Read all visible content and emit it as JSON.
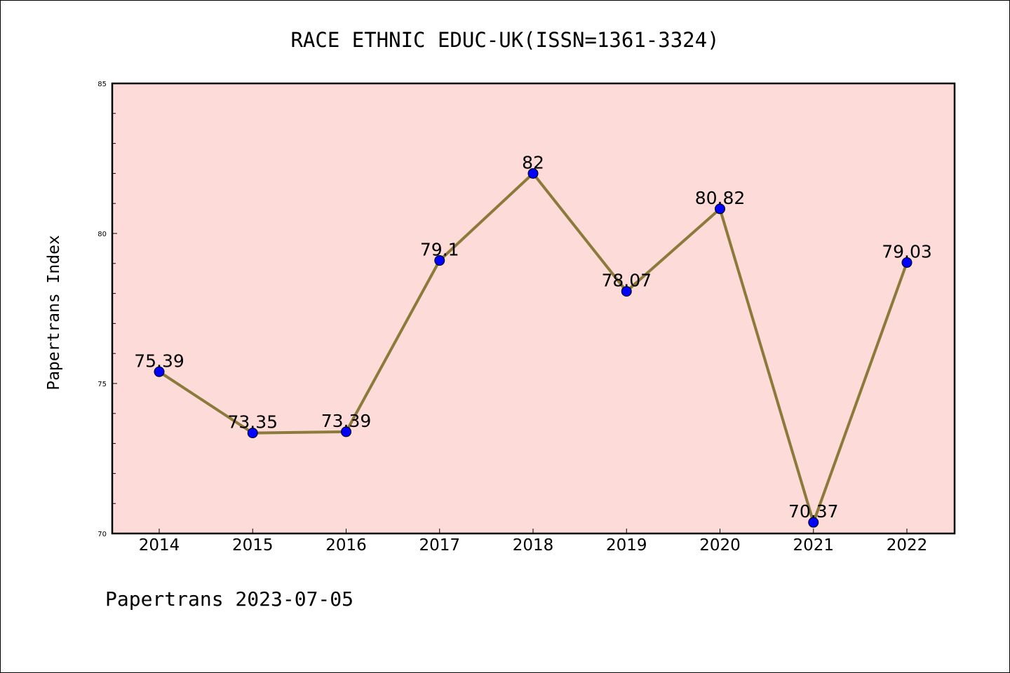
{
  "footer": "Papertrans 2023-07-05",
  "colors": {
    "plot_background": "#fddbd9",
    "line": "#8b7a3a",
    "marker": "#0000ff"
  },
  "chart_data": {
    "type": "line",
    "title": "RACE ETHNIC EDUC-UK(ISSN=1361-3324)",
    "xlabel": "",
    "ylabel": "Papertrans Index",
    "categories": [
      "2014",
      "2015",
      "2016",
      "2017",
      "2018",
      "2019",
      "2020",
      "2021",
      "2022"
    ],
    "series": [
      {
        "values": [
          75.39,
          73.35,
          73.39,
          79.1,
          82,
          78.07,
          80.82,
          70.37,
          79.03
        ],
        "labels": [
          "75.39",
          "73.35",
          "73.39",
          "79.1",
          "82",
          "78.07",
          "80.82",
          "70.37",
          "79.03"
        ]
      }
    ],
    "ylim": [
      70,
      85
    ],
    "yticks": [
      "70",
      "75",
      "80",
      "85"
    ],
    "y_minor_step": 1,
    "grid": false,
    "legend": "none"
  }
}
